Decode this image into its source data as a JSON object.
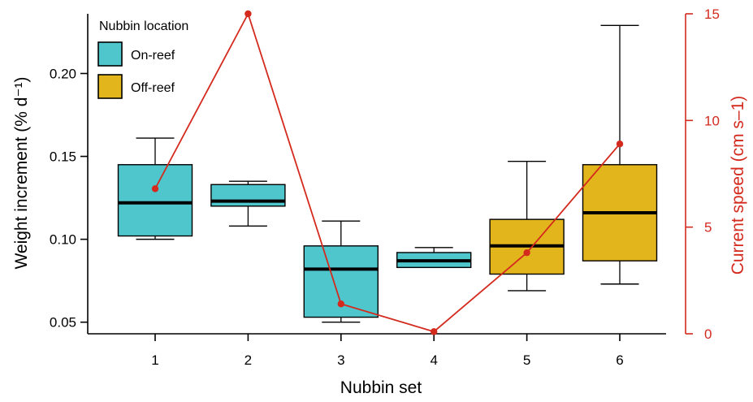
{
  "chart_data": {
    "type": "box",
    "xlabel": "Nubbin set",
    "ylabel_left": "Weight increment (% d⁻¹)",
    "ylabel_right": "Current speed (cm s–1)",
    "categories": [
      "1",
      "2",
      "3",
      "4",
      "5",
      "6"
    ],
    "y_left_ticks": [
      "0.05",
      "0.10",
      "0.15",
      "0.20"
    ],
    "y_left_tick_values": [
      0.05,
      0.1,
      0.15,
      0.2
    ],
    "y_left_range": [
      0.043,
      0.236
    ],
    "y_right_ticks": [
      "0",
      "5",
      "10",
      "15"
    ],
    "y_right_tick_values": [
      0,
      5,
      10,
      15
    ],
    "y_right_range": [
      0,
      15
    ],
    "legend": {
      "title": "Nubbin location",
      "placement": "top-left",
      "items": [
        {
          "label": "On-reef",
          "color": "#4ec6cc"
        },
        {
          "label": "Off-reef",
          "color": "#e3b51d"
        }
      ]
    },
    "boxes": [
      {
        "x": "1",
        "group": "On-reef",
        "whisker_low": 0.1,
        "q1": 0.102,
        "median": 0.122,
        "q3": 0.145,
        "whisker_high": 0.161,
        "outliers": []
      },
      {
        "x": "2",
        "group": "On-reef",
        "whisker_low": 0.108,
        "q1": 0.12,
        "median": 0.123,
        "q3": 0.133,
        "whisker_high": 0.135,
        "outliers": []
      },
      {
        "x": "3",
        "group": "On-reef",
        "whisker_low": 0.05,
        "q1": 0.053,
        "median": 0.082,
        "q3": 0.096,
        "whisker_high": 0.111,
        "outliers": []
      },
      {
        "x": "4",
        "group": "On-reef",
        "whisker_low": 0.083,
        "q1": 0.083,
        "median": 0.087,
        "q3": 0.092,
        "whisker_high": 0.095,
        "outliers": [
          0.044
        ]
      },
      {
        "x": "5",
        "group": "Off-reef",
        "whisker_low": 0.069,
        "q1": 0.079,
        "median": 0.096,
        "q3": 0.112,
        "whisker_high": 0.147,
        "outliers": []
      },
      {
        "x": "6",
        "group": "Off-reef",
        "whisker_low": 0.073,
        "q1": 0.087,
        "median": 0.116,
        "q3": 0.145,
        "whisker_high": 0.229,
        "outliers": []
      }
    ],
    "current_speed_series": {
      "color": "#d42a1e",
      "values": [
        6.8,
        15.0,
        1.4,
        0.1,
        3.8,
        8.9
      ]
    },
    "colors": {
      "on_reef": "#4ec6cc",
      "off_reef": "#e3b51d",
      "current": "#d42a1e",
      "axis": "#000000"
    }
  }
}
